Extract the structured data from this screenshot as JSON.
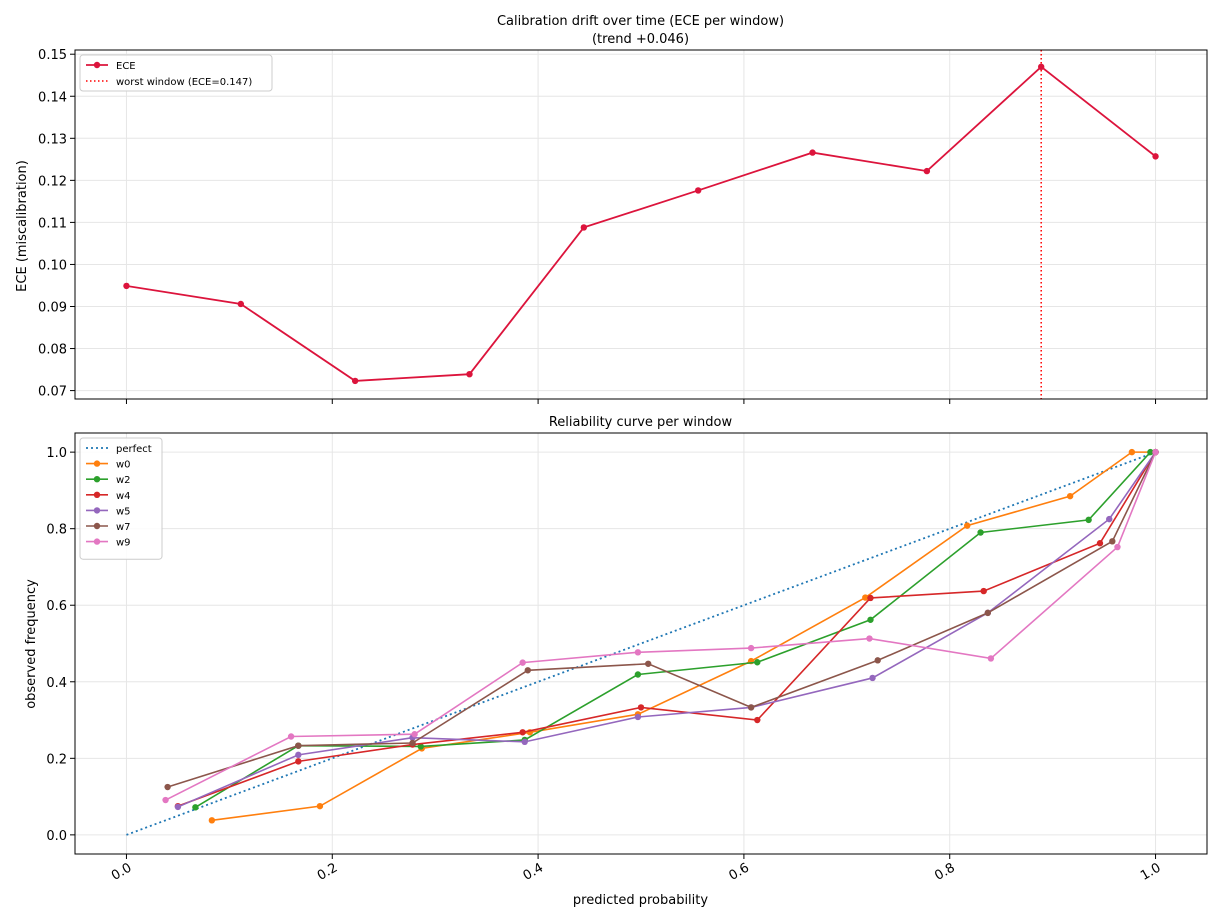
{
  "chart_data": [
    {
      "type": "line",
      "title": "Calibration drift over time (ECE per window)",
      "subtitle": "(trend +0.046)",
      "xlabel": "",
      "ylabel": "ECE (miscalibration)",
      "ylim": [
        0.068,
        0.151
      ],
      "yticks": [
        "0.07",
        "0.08",
        "0.09",
        "0.10",
        "0.11",
        "0.12",
        "0.13",
        "0.14",
        "0.15"
      ],
      "grid": true,
      "legend_position": "upper left",
      "series": [
        {
          "name": "ECE",
          "color": "#dc143c",
          "x": [
            0,
            1,
            2,
            3,
            4,
            5,
            6,
            7,
            8,
            9
          ],
          "values": [
            0.0949,
            0.0906,
            0.0723,
            0.0739,
            0.1088,
            0.1176,
            0.1266,
            0.1222,
            0.147,
            0.1257
          ]
        }
      ],
      "marker_line": {
        "name": "worst window (ECE=0.147)",
        "color": "#ff0000",
        "x": 8
      }
    },
    {
      "type": "line",
      "title": "Reliability curve per window",
      "xlabel": "predicted probability",
      "ylabel": "observed frequency",
      "xlim": [
        -0.05,
        1.05
      ],
      "ylim": [
        -0.05,
        1.05
      ],
      "xticks": [
        "0.0",
        "0.2",
        "0.4",
        "0.6",
        "0.8",
        "1.0"
      ],
      "yticks": [
        "0.0",
        "0.2",
        "0.4",
        "0.6",
        "0.8",
        "1.0"
      ],
      "grid": true,
      "legend_position": "upper left",
      "series": [
        {
          "name": "perfect",
          "color": "#1f77b4",
          "style": "dotted",
          "x": [
            0,
            1
          ],
          "values": [
            0,
            1
          ]
        },
        {
          "name": "w0",
          "color": "#ff7f0e",
          "x": [
            0.083,
            0.188,
            0.287,
            0.392,
            0.497,
            0.607,
            0.718,
            0.817,
            0.917,
            0.977,
            1.0
          ],
          "values": [
            0.038,
            0.075,
            0.226,
            0.268,
            0.315,
            0.454,
            0.62,
            0.808,
            0.885,
            1.0,
            1.0
          ]
        },
        {
          "name": "w2",
          "color": "#2ca02c",
          "x": [
            0.067,
            0.167,
            0.286,
            0.387,
            0.497,
            0.613,
            0.723,
            0.83,
            0.935,
            0.995,
            1.0
          ],
          "values": [
            0.072,
            0.233,
            0.231,
            0.248,
            0.419,
            0.451,
            0.562,
            0.79,
            0.823,
            1.0,
            1.0
          ]
        },
        {
          "name": "w4",
          "color": "#d62728",
          "x": [
            0.05,
            0.167,
            0.278,
            0.385,
            0.5,
            0.613,
            0.723,
            0.833,
            0.946,
            1.0
          ],
          "values": [
            0.075,
            0.192,
            0.236,
            0.268,
            0.333,
            0.3,
            0.619,
            0.637,
            0.762,
            1.0
          ]
        },
        {
          "name": "w5",
          "color": "#9467bd",
          "x": [
            0.05,
            0.167,
            0.278,
            0.387,
            0.497,
            0.607,
            0.725,
            0.837,
            0.955,
            1.0
          ],
          "values": [
            0.073,
            0.209,
            0.254,
            0.243,
            0.308,
            0.333,
            0.41,
            0.58,
            0.825,
            1.0
          ]
        },
        {
          "name": "w7",
          "color": "#8c564b",
          "x": [
            0.04,
            0.167,
            0.278,
            0.39,
            0.507,
            0.607,
            0.73,
            0.837,
            0.958,
            1.0
          ],
          "values": [
            0.125,
            0.233,
            0.24,
            0.43,
            0.447,
            0.333,
            0.456,
            0.58,
            0.767,
            1.0
          ]
        },
        {
          "name": "w9",
          "color": "#e377c2",
          "x": [
            0.038,
            0.16,
            0.28,
            0.385,
            0.497,
            0.607,
            0.722,
            0.84,
            0.963,
            1.0
          ],
          "values": [
            0.091,
            0.257,
            0.263,
            0.45,
            0.477,
            0.488,
            0.513,
            0.461,
            0.752,
            1.0
          ]
        }
      ]
    }
  ]
}
